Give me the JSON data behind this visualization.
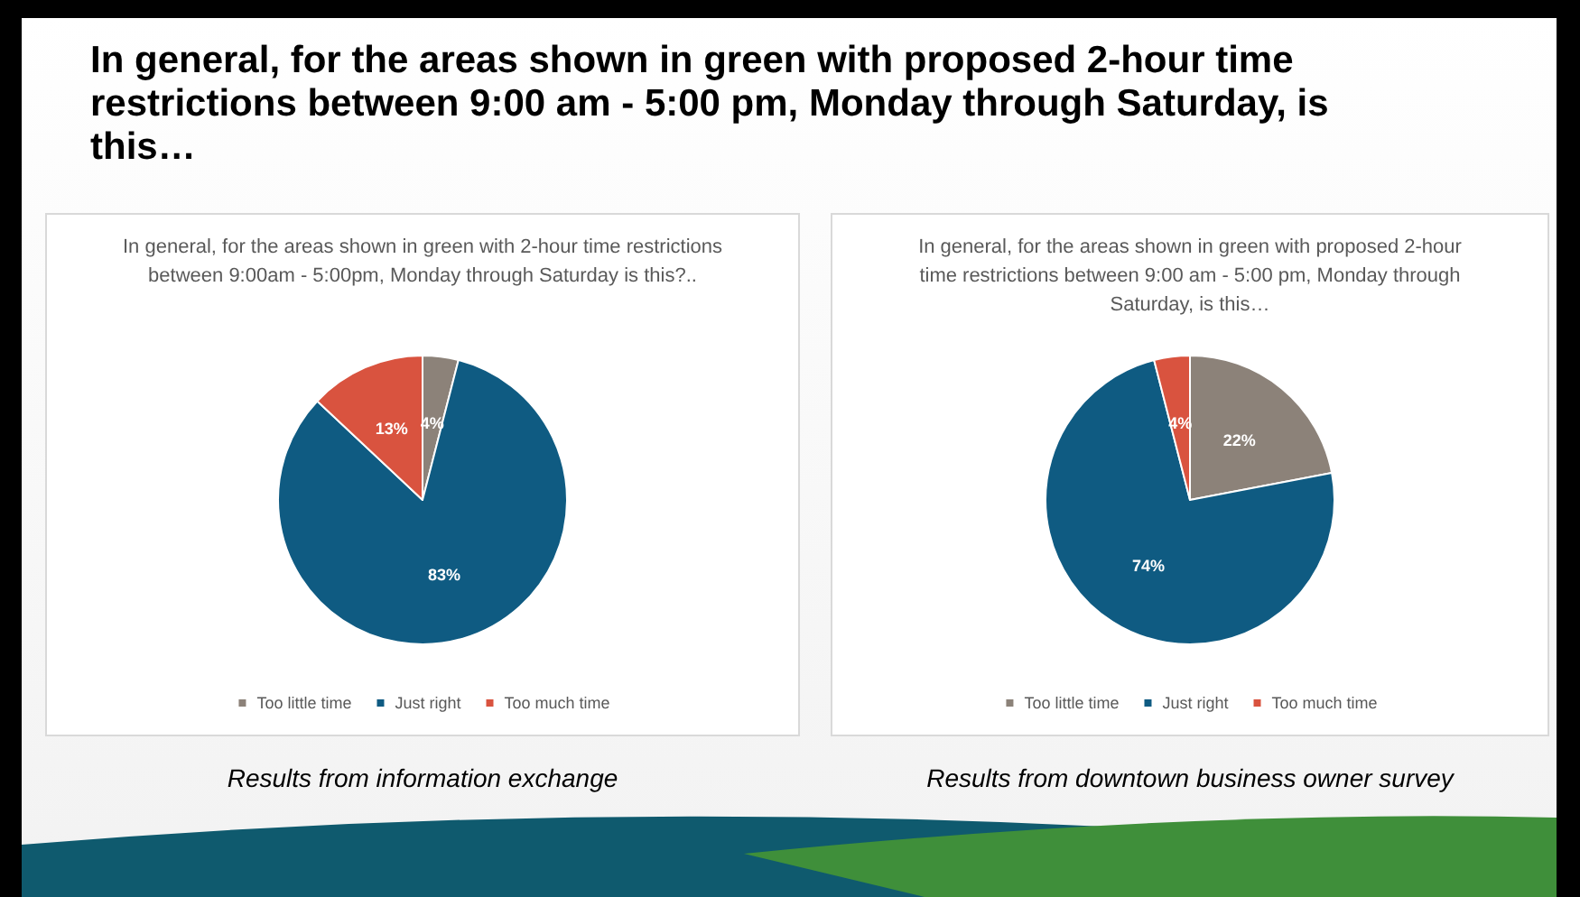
{
  "chart_data": [
    {
      "type": "other",
      "title": "In general, for the areas shown in green with proposed 2-hour time restrictions between 9:00 am - 5:00 pm, Monday through Saturday, is this…"
    },
    {
      "type": "pie",
      "title": "In general, for the areas shown in green with 2-hour time restrictions between 9:00am - 5:00pm, Monday through Saturday is this?..",
      "categories": [
        "Too little time",
        "Just right",
        "Too much time"
      ],
      "values": [
        4,
        83,
        13
      ],
      "value_labels": [
        "4%",
        "83%",
        "13%"
      ],
      "colors": [
        "#8c8279",
        "#0f5b82",
        "#d9533f"
      ],
      "legend": "bottom",
      "annotations": [
        "Results from information exchange"
      ]
    },
    {
      "type": "pie",
      "title": "In general, for the areas shown in green with proposed 2-hour time restrictions between 9:00 am - 5:00 pm, Monday through Saturday, is this…",
      "categories": [
        "Too little time",
        "Just right",
        "Too much time"
      ],
      "values": [
        22,
        74,
        4
      ],
      "value_labels": [
        "22%",
        "74%",
        "4%"
      ],
      "colors": [
        "#8c8279",
        "#0f5b82",
        "#d9533f"
      ],
      "legend": "bottom",
      "annotations": [
        "Results from downtown business owner survey"
      ]
    }
  ]
}
